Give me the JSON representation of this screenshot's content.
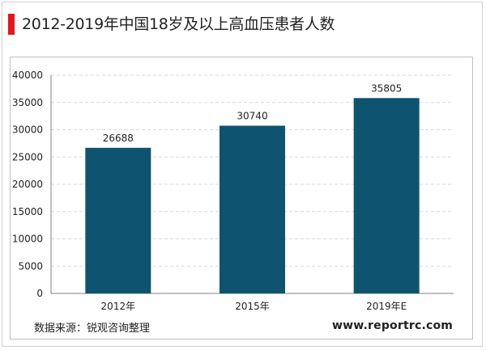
{
  "title": "2012-2019年中国18岁及以上高血压患者人数",
  "source": "数据来源：锐观咨询整理",
  "website": "www.reportrc.com",
  "colors": {
    "bar": "#0e5470",
    "accent": "#e8141b"
  },
  "chart_data": {
    "type": "bar",
    "categories": [
      "2012年",
      "2015年",
      "2019年E"
    ],
    "values": [
      26688,
      30740,
      35805
    ],
    "yticks": [
      0,
      5000,
      10000,
      15000,
      20000,
      25000,
      30000,
      35000,
      40000
    ],
    "ylim": [
      0,
      40000
    ],
    "xlabel": "",
    "ylabel": "",
    "grid": true,
    "data_labels": true
  }
}
